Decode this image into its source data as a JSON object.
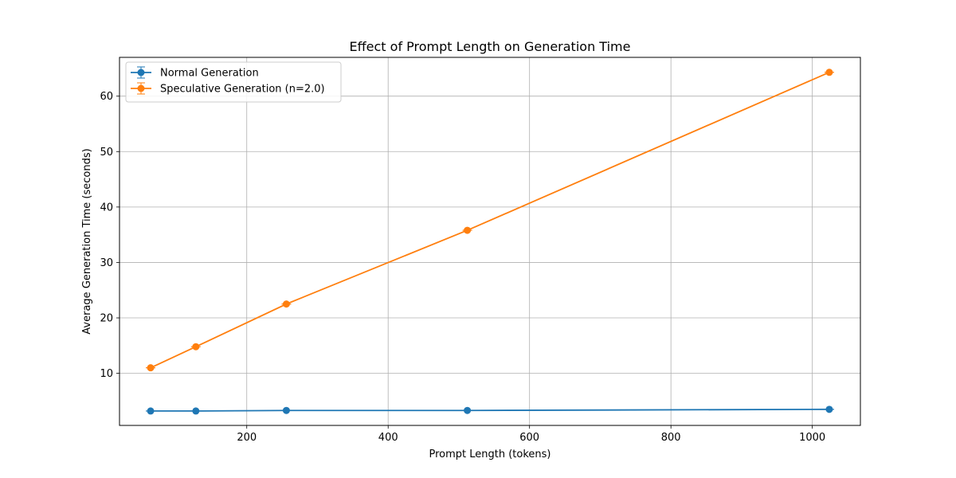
{
  "chart_data": {
    "type": "line",
    "title": "Effect of Prompt Length on Generation Time",
    "xlabel": "Prompt Length (tokens)",
    "ylabel": "Average Generation Time (seconds)",
    "x": [
      64,
      128,
      256,
      512,
      1024
    ],
    "xlim": [
      20,
      1068
    ],
    "ylim": [
      0.6,
      67.0
    ],
    "xticks": [
      200,
      400,
      600,
      800,
      1000
    ],
    "yticks": [
      10,
      20,
      30,
      40,
      50,
      60
    ],
    "grid": true,
    "legend_position": "top-left",
    "series": [
      {
        "name": "Normal Generation",
        "color": "#1f77b4",
        "marker": "circle",
        "error_bars": true,
        "values": [
          3.2,
          3.2,
          3.3,
          3.3,
          3.5
        ]
      },
      {
        "name": "Speculative Generation (n=2.0)",
        "color": "#ff7f0e",
        "marker": "circle",
        "error_bars": true,
        "values": [
          11.0,
          14.8,
          22.5,
          35.8,
          64.3
        ]
      }
    ]
  }
}
